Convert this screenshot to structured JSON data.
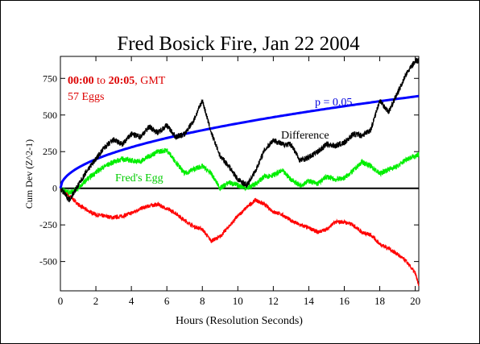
{
  "chart_data": {
    "type": "line",
    "title": "Fred Bosick Fire, Jan 22 2004",
    "xlabel": "Hours (Resolution Seconds)",
    "ylabel": "Cum Dev (Z^2-1)",
    "xlim": [
      0,
      20.2
    ],
    "ylim": [
      -700,
      900
    ],
    "x_ticks": [
      0,
      2,
      4,
      6,
      8,
      10,
      12,
      14,
      16,
      18,
      20
    ],
    "y_ticks": [
      -500,
      -250,
      0,
      250,
      500,
      750
    ],
    "grid": false,
    "annotations": {
      "time_range_bold": "00:00",
      "time_range_mid": " to ",
      "time_range_bold2": "20:05",
      "time_range_rest": ", GMT",
      "eggs": "57 Eggs",
      "p_label": "p = 0.05",
      "difference_label": "Difference",
      "egg_label": "Fred's Egg"
    },
    "colors": {
      "difference": "#000000",
      "eggs": "#ff0000",
      "fred": "#00ee00",
      "p": "#0000ff",
      "annotation": "#dd0000"
    },
    "series": [
      {
        "id": "difference",
        "x": [
          0,
          0.5,
          1,
          1.5,
          2,
          2.5,
          3,
          3.5,
          4,
          4.5,
          5,
          5.5,
          6,
          6.5,
          7,
          7.5,
          8,
          8.5,
          9,
          9.5,
          10,
          10.5,
          11,
          11.5,
          12,
          12.5,
          13,
          13.5,
          14,
          14.5,
          15,
          15.5,
          16,
          16.5,
          17,
          17.5,
          18,
          18.5,
          19,
          19.5,
          20,
          20.2
        ],
        "values": [
          0,
          -80,
          20,
          120,
          200,
          280,
          330,
          300,
          370,
          350,
          420,
          380,
          430,
          350,
          370,
          460,
          600,
          380,
          220,
          150,
          60,
          20,
          120,
          260,
          330,
          300,
          300,
          190,
          210,
          250,
          300,
          290,
          310,
          370,
          360,
          400,
          600,
          520,
          650,
          780,
          870,
          870
        ]
      },
      {
        "id": "eggs",
        "x": [
          0,
          0.5,
          1,
          1.5,
          2,
          2.5,
          3,
          3.5,
          4,
          4.5,
          5,
          5.5,
          6,
          6.5,
          7,
          7.5,
          8,
          8.5,
          9,
          9.5,
          10,
          10.5,
          11,
          11.5,
          12,
          12.5,
          13,
          13.5,
          14,
          14.5,
          15,
          15.5,
          16,
          16.5,
          17,
          17.5,
          18,
          18.5,
          19,
          19.5,
          20,
          20.2
        ],
        "values": [
          0,
          -50,
          -110,
          -150,
          -180,
          -190,
          -200,
          -190,
          -170,
          -140,
          -120,
          -110,
          -140,
          -170,
          -220,
          -260,
          -280,
          -360,
          -330,
          -260,
          -190,
          -130,
          -80,
          -110,
          -160,
          -180,
          -220,
          -250,
          -270,
          -300,
          -280,
          -230,
          -230,
          -250,
          -300,
          -320,
          -380,
          -410,
          -450,
          -500,
          -580,
          -660
        ]
      },
      {
        "id": "fred",
        "x": [
          0,
          0.5,
          1,
          1.5,
          2,
          2.5,
          3,
          3.5,
          4,
          4.5,
          5,
          5.5,
          6,
          6.5,
          7,
          7.5,
          8,
          8.5,
          9,
          9.5,
          10,
          10.5,
          11,
          11.5,
          12,
          12.5,
          13,
          13.5,
          14,
          14.5,
          15,
          15.5,
          16,
          16.5,
          17,
          17.5,
          18,
          18.5,
          19,
          19.5,
          20,
          20.2
        ],
        "values": [
          0,
          -30,
          0,
          60,
          110,
          150,
          180,
          200,
          190,
          180,
          220,
          250,
          260,
          180,
          100,
          130,
          150,
          100,
          0,
          40,
          20,
          0,
          30,
          80,
          90,
          120,
          60,
          20,
          50,
          30,
          80,
          60,
          70,
          120,
          180,
          150,
          100,
          130,
          150,
          200,
          220,
          230
        ]
      }
    ],
    "p_curve": {
      "coefficient": 140
    }
  }
}
